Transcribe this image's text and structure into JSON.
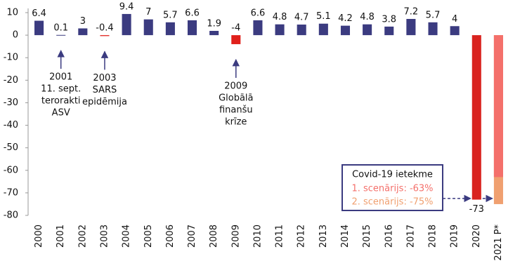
{
  "chart_data": {
    "type": "bar",
    "categories": [
      "2000",
      "2001",
      "2002",
      "2003",
      "2004",
      "2005",
      "2006",
      "2007",
      "2008",
      "2009",
      "2010",
      "2011",
      "2012",
      "2013",
      "2014",
      "2015",
      "2016",
      "2017",
      "2018",
      "2019",
      "2020",
      "2021 P*"
    ],
    "values": [
      6.4,
      0.1,
      3,
      -0.4,
      9.4,
      7,
      5.7,
      6.6,
      1.9,
      -4,
      6.6,
      4.8,
      4.7,
      5.1,
      4.2,
      4.8,
      3.8,
      7.2,
      5.7,
      4,
      -73,
      null
    ],
    "colors": [
      "#3b3b80",
      "#3b3b80",
      "#3b3b80",
      "#e0201b",
      "#3b3b80",
      "#3b3b80",
      "#3b3b80",
      "#3b3b80",
      "#3b3b80",
      "#e0201b",
      "#3b3b80",
      "#3b3b80",
      "#3b3b80",
      "#3b3b80",
      "#3b3b80",
      "#3b3b80",
      "#3b3b80",
      "#3b3b80",
      "#3b3b80",
      "#3b3b80",
      "#d9231f",
      "#3b3b80"
    ],
    "ylim": [
      -80,
      10
    ],
    "yticks": [
      -80,
      -70,
      -60,
      -50,
      -40,
      -30,
      -20,
      -10,
      0,
      10
    ],
    "annotations": [
      {
        "lines": [
          "2001",
          "11. sept.",
          "terorakti",
          "ASV"
        ]
      },
      {
        "lines": [
          "2003",
          "SARS",
          "epidēmija"
        ]
      },
      {
        "lines": [
          "2009",
          "Globālā",
          "finanšu",
          "krīze"
        ]
      }
    ],
    "scenario_box": {
      "title": "Covid-19 ietekme",
      "scenarios": [
        {
          "label": "1. scenārijs: -63%",
          "value": -63,
          "color": "#f4706b"
        },
        {
          "label": "2. scenārijs: -75%",
          "value": -75,
          "color": "#f0a070"
        }
      ]
    }
  }
}
